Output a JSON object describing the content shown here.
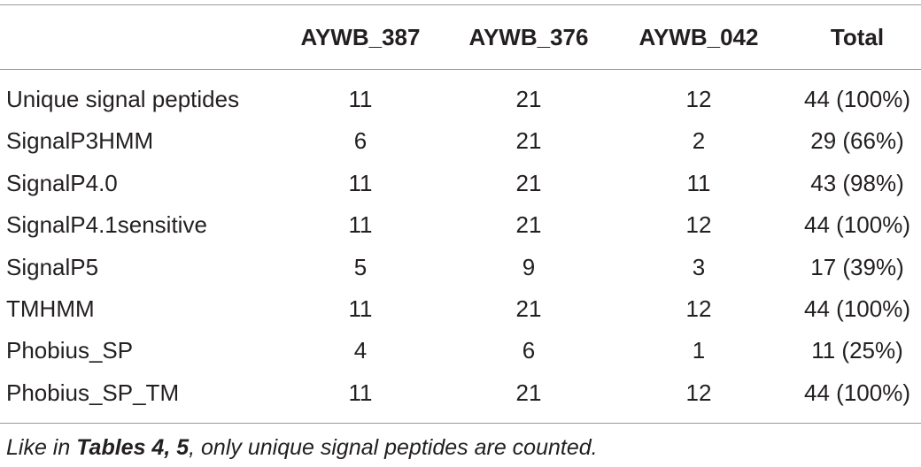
{
  "table": {
    "header": [
      "",
      "AYWB_387",
      "AYWB_376",
      "AYWB_042",
      "Total"
    ],
    "rows": [
      [
        "Unique signal peptides",
        11,
        21,
        12,
        "44 (100%)"
      ],
      [
        "SignalP3HMM",
        6,
        21,
        2,
        "29 (66%)"
      ],
      [
        "SignalP4.0",
        11,
        21,
        11,
        "43 (98%)"
      ],
      [
        "SignalP4.1sensitive",
        11,
        21,
        12,
        "44 (100%)"
      ],
      [
        "SignalP5",
        5,
        9,
        3,
        "17 (39%)"
      ],
      [
        "TMHMM",
        11,
        21,
        12,
        "44 (100%)"
      ],
      [
        "Phobius_SP",
        4,
        6,
        1,
        "11 (25%)"
      ],
      [
        "Phobius_SP_TM",
        11,
        21,
        12,
        "44 (100%)"
      ]
    ],
    "note": [
      "Like in ",
      "Tables 4, 5",
      ", only unique signal peptides are counted."
    ]
  }
}
